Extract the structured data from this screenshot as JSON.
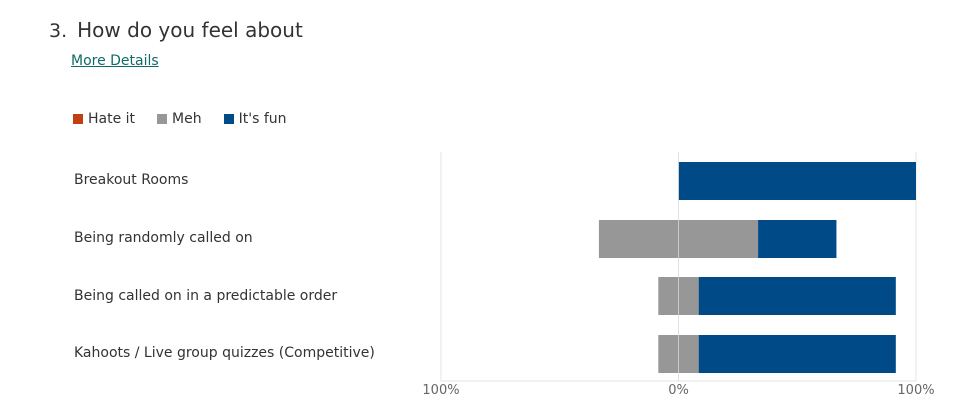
{
  "question": {
    "number": "3.",
    "title": "How do you feel about",
    "more_details": "More Details"
  },
  "colors": {
    "hate": "#c0410f",
    "meh": "#979797",
    "fun": "#004b87",
    "grid": "#e6e6e6",
    "zero": "#d9d9d9"
  },
  "chart_data": {
    "type": "bar",
    "orientation": "horizontal",
    "stacking": "diverging",
    "legend_position": "top-left",
    "grid": true,
    "categories": [
      "Breakout Rooms",
      "Being randomly called on",
      "Being called on in a predictable order",
      "Kahoots / Live group quizzes (Competitive)"
    ],
    "series": [
      {
        "name": "Hate it",
        "values": [
          0,
          0,
          0,
          0
        ]
      },
      {
        "name": "Meh",
        "values": [
          0,
          67,
          17,
          17
        ]
      },
      {
        "name": "It's fun",
        "values": [
          100,
          33,
          83,
          83
        ]
      }
    ],
    "x_ticks": [
      "100%",
      "0%",
      "100%"
    ],
    "xlim": [
      -100,
      100
    ]
  }
}
